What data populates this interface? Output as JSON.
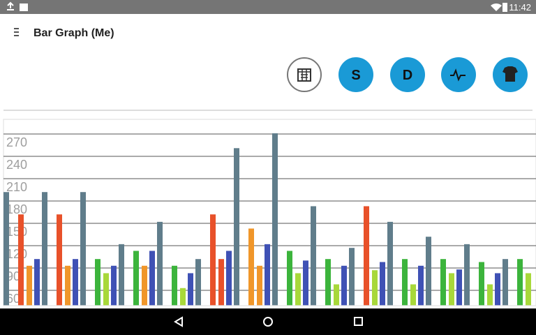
{
  "status_bar": {
    "time": "11:42"
  },
  "app_bar": {
    "title": "Bar Graph (Me)"
  },
  "buttons": [
    "S",
    "D"
  ],
  "chart_data": {
    "type": "bar",
    "categories": [
      null,
      null,
      null,
      null,
      null,
      null,
      null,
      null,
      null,
      null,
      null,
      null,
      null,
      null,
      null
    ],
    "series": [
      {
        "colors": [
          null,
          "#e8512a",
          "#e8512a",
          "#3cb43c",
          "#3cb43c",
          "#3cb43c",
          "#e8512a",
          "#f0962a",
          "#3cb43c",
          "#3cb43c",
          "#e8512a",
          "#3cb43c",
          "#3cb43c",
          "#3cb43c",
          "#3cb43c"
        ],
        "values": [
          null,
          162,
          162,
          102,
          113,
          93,
          162,
          143,
          113,
          102,
          173,
          102,
          102,
          98,
          102
        ]
      },
      {
        "colors": [
          null,
          "#f0962a",
          "#f0962a",
          "#a8d83a",
          "#f0962a",
          "#a8d83a",
          "#e8512a",
          "#f0962a",
          "#a8d83a",
          "#a8d83a",
          "#a8d83a",
          "#a8d83a",
          "#a8d83a",
          "#a8d83a",
          "#a8d83a"
        ],
        "values": [
          null,
          93,
          93,
          83,
          93,
          63,
          102,
          93,
          83,
          68,
          87,
          68,
          83,
          68,
          83
        ]
      },
      {
        "color": "#3f51b5",
        "values": [
          null,
          102,
          102,
          93,
          113,
          83,
          113,
          122,
          100,
          93,
          98,
          93,
          88,
          83,
          null
        ]
      },
      {
        "color": "#607d8b",
        "values": [
          192,
          192,
          192,
          122,
          152,
          102,
          251,
          271,
          173,
          117,
          152,
          132,
          122,
          102,
          null
        ]
      }
    ],
    "ylim": [
      40,
      290
    ],
    "yticks": [
      60,
      90,
      120,
      150,
      180,
      210,
      240,
      270
    ],
    "grid": true
  }
}
